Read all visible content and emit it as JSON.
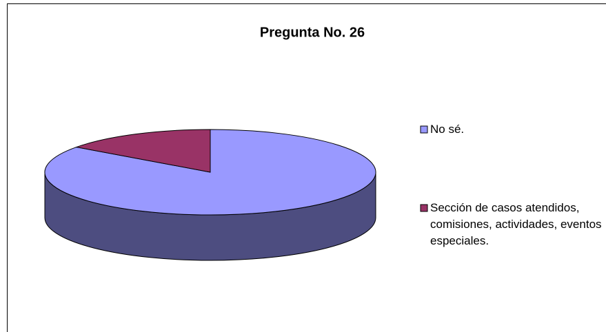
{
  "chart_data": {
    "type": "pie",
    "title": "Pregunta No. 26",
    "categories": [
      "No sé.",
      "Sección de casos atendidos, comisiones, actividades, eventos especiales."
    ],
    "values": [
      85,
      15
    ],
    "colors": [
      "#9999ff",
      "#993366"
    ],
    "legend": "right"
  }
}
